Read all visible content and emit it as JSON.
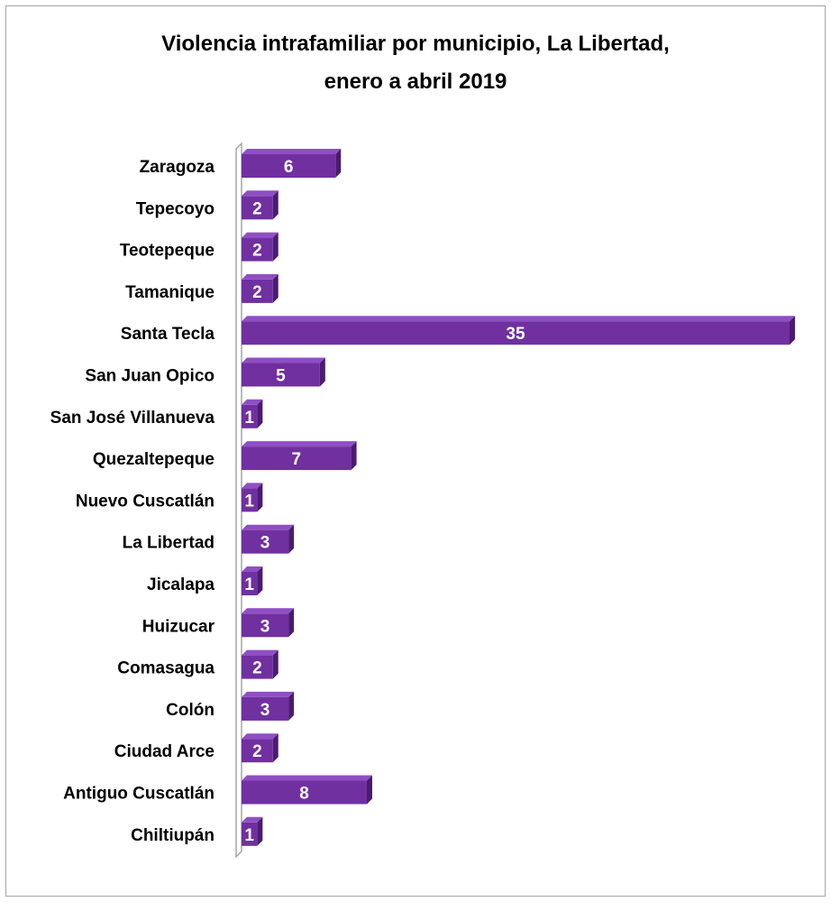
{
  "chart_data": {
    "type": "bar",
    "orientation": "horizontal",
    "title_lines": [
      "Violencia intrafamiliar por municipio, La Libertad,",
      "enero a abril 2019"
    ],
    "categories": [
      "Zaragoza",
      "Tepecoyo",
      "Teotepeque",
      "Tamanique",
      "Santa Tecla",
      "San Juan Opico",
      "San José Villanueva",
      "Quezaltepeque",
      "Nuevo Cuscatlán",
      "La Libertad",
      "Jicalapa",
      "Huizucar",
      "Comasagua",
      "Colón",
      "Ciudad Arce",
      "Antiguo Cuscatlán",
      "Chiltiupán"
    ],
    "values": [
      6,
      2,
      2,
      2,
      35,
      5,
      1,
      7,
      1,
      3,
      1,
      3,
      2,
      3,
      2,
      8,
      1
    ],
    "xlim": [
      0,
      35
    ],
    "grid": false,
    "legend": "none",
    "data_labels": true,
    "colors": {
      "bar_front": "#7030a0",
      "bar_top": "#8f4fc4",
      "bar_side": "#4b1a72",
      "label_text": "#ffffff",
      "axis_wall": "#a6a6a6"
    }
  }
}
